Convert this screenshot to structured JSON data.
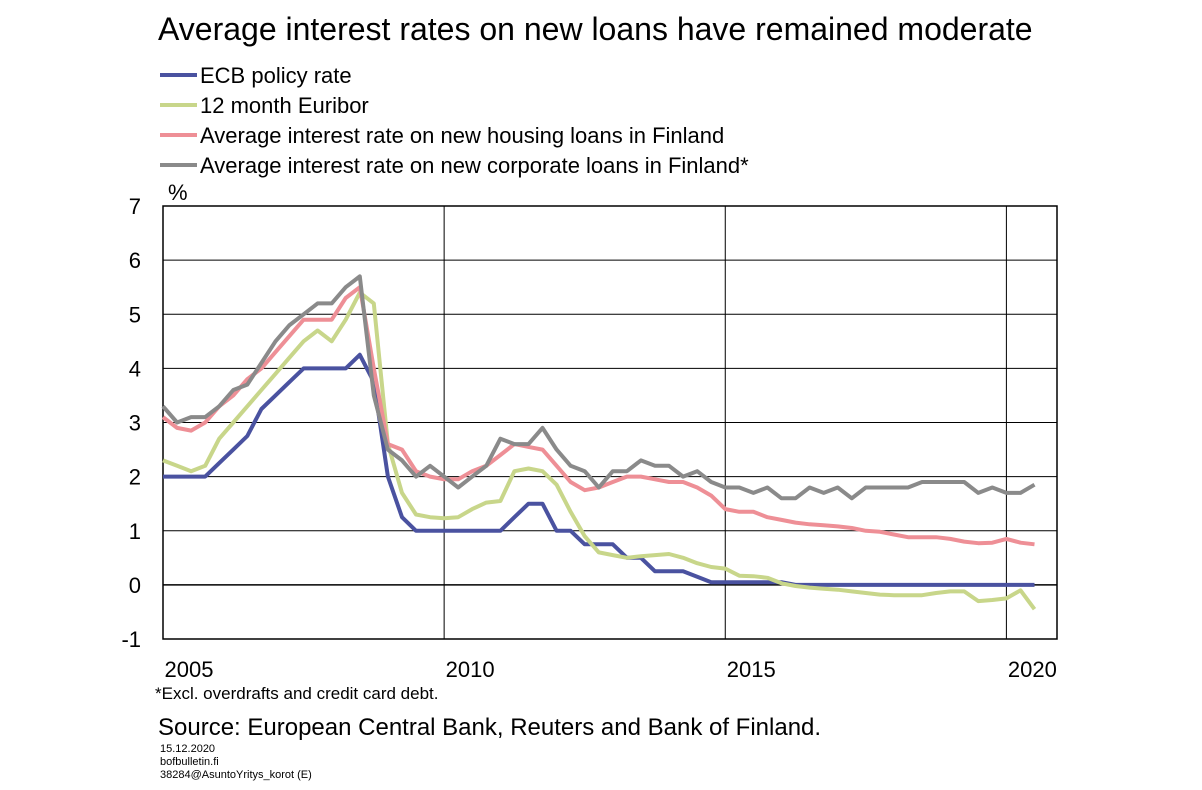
{
  "chart_data": {
    "type": "line",
    "title": "Average interest rates on new loans have remained moderate",
    "y_label": "%",
    "footnote": "*Excl. overdrafts and credit card debt.",
    "source": "Source: European Central Bank, Reuters and Bank of Finland.",
    "meta": [
      "15.12.2020",
      "bofbulletin.fi",
      "38284@AsuntoYritys_korot  (E)"
    ],
    "x": [
      2005,
      2005.25,
      2005.5,
      2005.75,
      2006,
      2006.25,
      2006.5,
      2006.75,
      2007,
      2007.25,
      2007.5,
      2007.75,
      2008,
      2008.25,
      2008.5,
      2008.75,
      2009,
      2009.25,
      2009.5,
      2009.75,
      2010,
      2010.25,
      2010.5,
      2010.75,
      2011,
      2011.25,
      2011.5,
      2011.75,
      2012,
      2012.25,
      2012.5,
      2012.75,
      2013,
      2013.25,
      2013.5,
      2013.75,
      2014,
      2014.25,
      2014.5,
      2014.75,
      2015,
      2015.25,
      2015.5,
      2015.75,
      2016,
      2016.25,
      2016.5,
      2016.75,
      2017,
      2017.25,
      2017.5,
      2017.75,
      2018,
      2018.25,
      2018.5,
      2018.75,
      2019,
      2019.25,
      2019.5,
      2019.75,
      2020,
      2020.25,
      2020.5
    ],
    "series": [
      {
        "name": "ECB policy rate",
        "color": "#4a52a0",
        "values": [
          2,
          2,
          2,
          2,
          2.25,
          2.5,
          2.75,
          3.25,
          3.5,
          3.75,
          4,
          4,
          4,
          4,
          4.25,
          3.75,
          2,
          1.25,
          1,
          1,
          1,
          1,
          1,
          1,
          1,
          1.25,
          1.5,
          1.5,
          1,
          1,
          0.75,
          0.75,
          0.75,
          0.5,
          0.5,
          0.25,
          0.25,
          0.25,
          0.15,
          0.05,
          0.05,
          0.05,
          0.05,
          0.05,
          0.05,
          0,
          0,
          0,
          0,
          0,
          0,
          0,
          0,
          0,
          0,
          0,
          0,
          0,
          0,
          0,
          0,
          0,
          0
        ]
      },
      {
        "name": "12 month Euribor",
        "color": "#c8d68a",
        "values": [
          2.3,
          2.2,
          2.1,
          2.2,
          2.7,
          3.0,
          3.3,
          3.6,
          3.9,
          4.2,
          4.5,
          4.7,
          4.5,
          4.9,
          5.4,
          5.2,
          2.6,
          1.7,
          1.3,
          1.25,
          1.23,
          1.25,
          1.4,
          1.52,
          1.55,
          2.1,
          2.15,
          2.1,
          1.85,
          1.35,
          0.9,
          0.6,
          0.55,
          0.5,
          0.53,
          0.55,
          0.57,
          0.5,
          0.4,
          0.33,
          0.3,
          0.17,
          0.16,
          0.13,
          0.03,
          -0.02,
          -0.05,
          -0.07,
          -0.09,
          -0.12,
          -0.15,
          -0.18,
          -0.19,
          -0.19,
          -0.19,
          -0.15,
          -0.12,
          -0.12,
          -0.3,
          -0.28,
          -0.25,
          -0.1,
          -0.45
        ]
      },
      {
        "name": "Average interest rate on new housing loans in Finland",
        "color": "#ee8f96",
        "values": [
          3.1,
          2.9,
          2.85,
          3.0,
          3.3,
          3.5,
          3.8,
          4.0,
          4.3,
          4.6,
          4.9,
          4.9,
          4.9,
          5.3,
          5.5,
          4.0,
          2.6,
          2.5,
          2.1,
          2.0,
          1.95,
          1.95,
          2.1,
          2.2,
          2.4,
          2.6,
          2.55,
          2.5,
          2.2,
          1.9,
          1.75,
          1.8,
          1.9,
          2.0,
          2.0,
          1.95,
          1.9,
          1.9,
          1.8,
          1.65,
          1.4,
          1.35,
          1.35,
          1.25,
          1.2,
          1.15,
          1.12,
          1.1,
          1.08,
          1.05,
          1.0,
          0.98,
          0.93,
          0.88,
          0.88,
          0.88,
          0.85,
          0.8,
          0.77,
          0.78,
          0.85,
          0.78,
          0.75
        ]
      },
      {
        "name": "Average interest rate on new corporate loans in Finland*",
        "color": "#8a8a8a",
        "values": [
          3.3,
          3.0,
          3.1,
          3.1,
          3.3,
          3.6,
          3.7,
          4.1,
          4.5,
          4.8,
          5.0,
          5.2,
          5.2,
          5.5,
          5.7,
          3.5,
          2.5,
          2.3,
          2.0,
          2.2,
          2.0,
          1.8,
          2.0,
          2.2,
          2.7,
          2.6,
          2.6,
          2.9,
          2.5,
          2.2,
          2.1,
          1.8,
          2.1,
          2.1,
          2.3,
          2.2,
          2.2,
          2.0,
          2.1,
          1.9,
          1.8,
          1.8,
          1.7,
          1.8,
          1.6,
          1.6,
          1.8,
          1.7,
          1.8,
          1.6,
          1.8,
          1.8,
          1.8,
          1.8,
          1.9,
          1.9,
          1.9,
          1.9,
          1.7,
          1.8,
          1.7,
          1.7,
          1.85
        ]
      }
    ],
    "xlim": [
      2005,
      2020.9
    ],
    "xticks": [
      2005,
      2010,
      2015,
      2020
    ],
    "ylim": [
      -1,
      7
    ],
    "yticks": [
      -1,
      0,
      1,
      2,
      3,
      4,
      5,
      6,
      7
    ],
    "grid": true
  }
}
